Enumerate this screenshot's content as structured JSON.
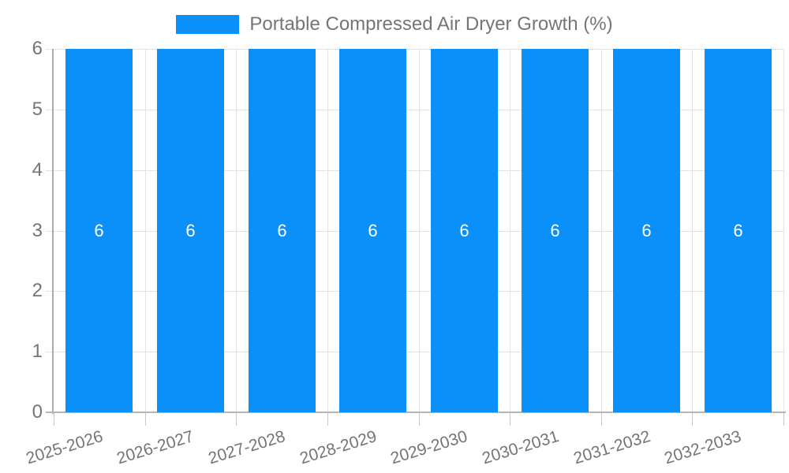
{
  "chart_data": {
    "type": "bar",
    "title": "Portable Compressed Air Dryer Growth (%)",
    "legend": {
      "position": "top",
      "label": "Portable Compressed Air Dryer Growth (%)"
    },
    "categories": [
      "2025-2026",
      "2026-2027",
      "2027-2028",
      "2028-2029",
      "2029-2030",
      "2030-2031",
      "2031-2032",
      "2032-2033"
    ],
    "series": [
      {
        "name": "Portable Compressed Air Dryer Growth (%)",
        "values": [
          6,
          6,
          6,
          6,
          6,
          6,
          6,
          6
        ]
      }
    ],
    "data_labels_shown": true,
    "xlabel": "",
    "ylabel": "",
    "ylim": [
      0,
      6
    ],
    "yticks": [
      0,
      1,
      2,
      3,
      4,
      5,
      6
    ],
    "grid": true,
    "colors": {
      "bar": "#0a90f8",
      "grid": "#e3e3e3",
      "axis_y": "#aaaaaa",
      "axis_x": "#b5b5b5",
      "tick": "#c9c9c9",
      "text": "#757575",
      "bar_label": "#ffffff",
      "background": "#ffffff"
    }
  }
}
